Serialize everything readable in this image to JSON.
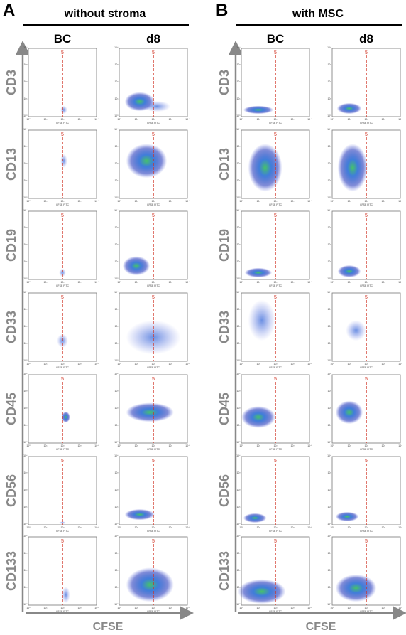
{
  "panels": [
    {
      "letter": "A",
      "title": "without stroma",
      "columns": [
        "BC",
        "d8"
      ]
    },
    {
      "letter": "B",
      "title": "with MSC",
      "columns": [
        "BC",
        "d8"
      ]
    }
  ],
  "rows": [
    "CD3",
    "CD13",
    "CD19",
    "CD33",
    "CD45",
    "CD56",
    "CD133"
  ],
  "gate_label": "5",
  "x_axis": "CFSE",
  "plot_x_label": "CFSE FITC",
  "plot_ticks": [
    "10⁰",
    "10¹",
    "10²",
    "10³",
    "10⁴"
  ]
}
